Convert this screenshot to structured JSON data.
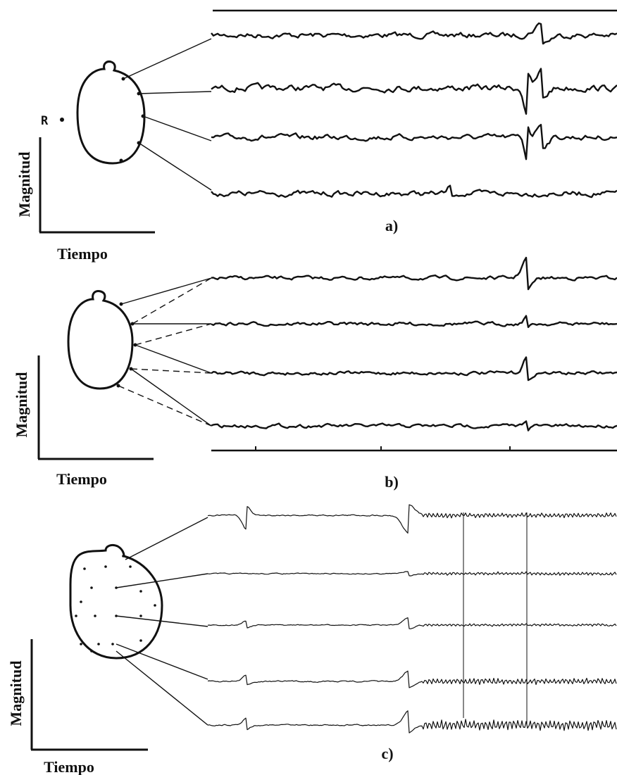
{
  "panels": [
    {
      "label": "a)",
      "y_axis": "Magnitud",
      "x_axis": "Tiempo",
      "marker": "R"
    },
    {
      "label": "b)",
      "y_axis": "Magnitud",
      "x_axis": "Tiempo"
    },
    {
      "label": "c)",
      "y_axis": "Magnitud",
      "x_axis": "Tiempo"
    }
  ]
}
